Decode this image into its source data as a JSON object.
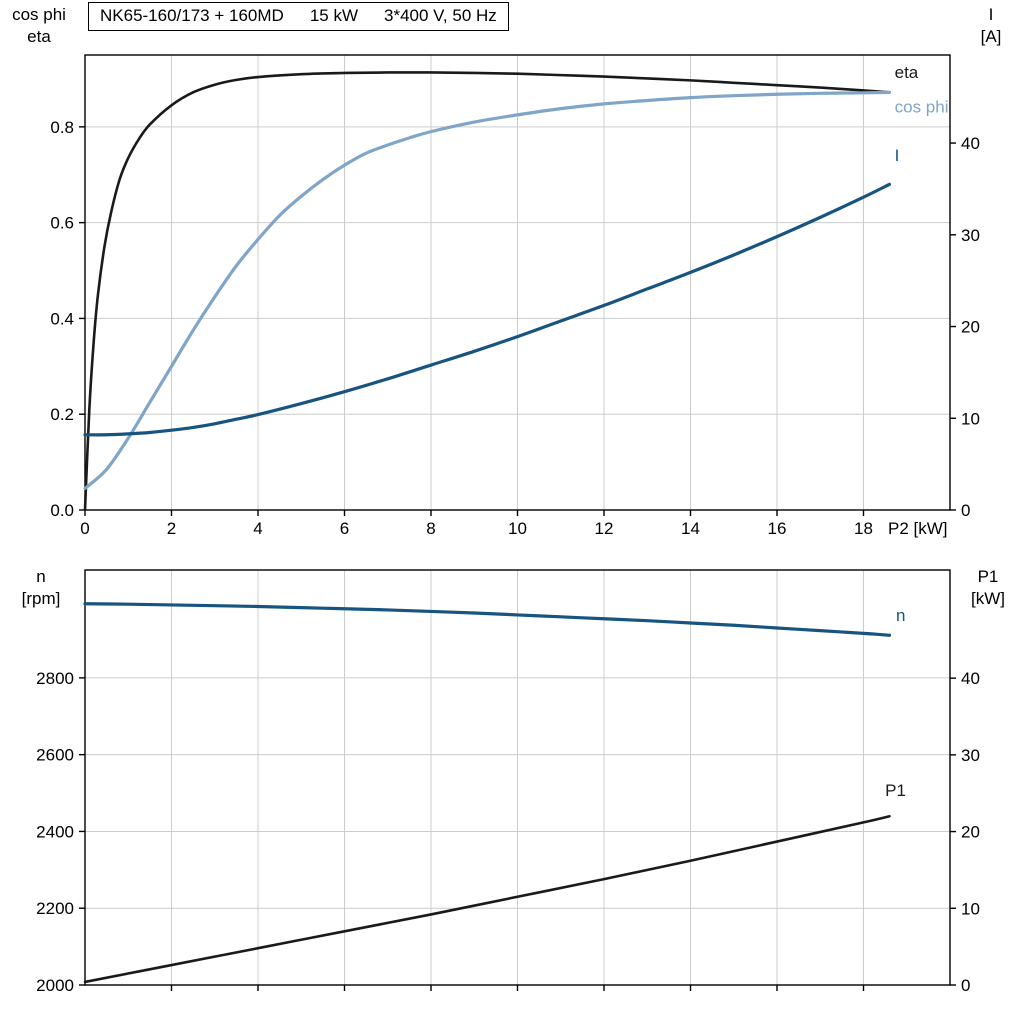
{
  "title": {
    "parts": [
      "NK65-160/173 + 160MD",
      "15 kW",
      "3*400 V, 50 Hz"
    ]
  },
  "axis_corner_labels": {
    "top_left": [
      "cos phi",
      "eta"
    ],
    "top_right": [
      "I",
      "[A]"
    ],
    "bottom_left": [
      "n",
      "[rpm]"
    ],
    "bottom_right": [
      "P1",
      "[kW]"
    ]
  },
  "colors": {
    "black": "#1a1a1a",
    "light_blue": "#7fa5c8",
    "dark_blue": "#17547f",
    "grid": "#cccccc",
    "frame": "#000000",
    "text": "#000000",
    "background": "#ffffff"
  },
  "chart_data": [
    {
      "id": "motor-efficiency-current",
      "type": "line",
      "grid": true,
      "x_axis": {
        "min": 0,
        "max": 20,
        "label": "P2 [kW]",
        "ticks": [
          {
            "v": 0,
            "t": "0"
          },
          {
            "v": 2,
            "t": "2"
          },
          {
            "v": 4,
            "t": "4"
          },
          {
            "v": 6,
            "t": "6"
          },
          {
            "v": 8,
            "t": "8"
          },
          {
            "v": 10,
            "t": "10"
          },
          {
            "v": 12,
            "t": "12"
          },
          {
            "v": 14,
            "t": "14"
          },
          {
            "v": 16,
            "t": "16"
          },
          {
            "v": 18,
            "t": "18"
          }
        ]
      },
      "left_axis": {
        "title": "cos phi / eta",
        "min": 0,
        "max": 0.95,
        "ticks": [
          {
            "v": 0,
            "t": "0.0"
          },
          {
            "v": 0.2,
            "t": "0.2"
          },
          {
            "v": 0.4,
            "t": "0.4"
          },
          {
            "v": 0.6,
            "t": "0.6"
          },
          {
            "v": 0.8,
            "t": "0.8"
          }
        ]
      },
      "right_axis": {
        "title": "I [A]",
        "min": 0,
        "max": 49.6,
        "ticks": [
          {
            "v": 0,
            "t": "0"
          },
          {
            "v": 10,
            "t": "10"
          },
          {
            "v": 20,
            "t": "20"
          },
          {
            "v": 30,
            "t": "30"
          },
          {
            "v": 40,
            "t": "40"
          }
        ]
      },
      "series": [
        {
          "name": "eta",
          "axis": "left",
          "color": "black",
          "width": 2.6,
          "label": "eta",
          "label_at": [
            18.72,
            0.915
          ],
          "points": [
            [
              0,
              0
            ],
            [
              0.1,
              0.21
            ],
            [
              0.2,
              0.35
            ],
            [
              0.3,
              0.45
            ],
            [
              0.45,
              0.55
            ],
            [
              0.6,
              0.62
            ],
            [
              0.8,
              0.69
            ],
            [
              1,
              0.735
            ],
            [
              1.25,
              0.775
            ],
            [
              1.5,
              0.805
            ],
            [
              2,
              0.845
            ],
            [
              2.5,
              0.872
            ],
            [
              3,
              0.888
            ],
            [
              3.5,
              0.898
            ],
            [
              4,
              0.904
            ],
            [
              5,
              0.91
            ],
            [
              6,
              0.9125
            ],
            [
              7,
              0.9135
            ],
            [
              8,
              0.9135
            ],
            [
              9,
              0.9125
            ],
            [
              10,
              0.911
            ],
            [
              11,
              0.908
            ],
            [
              12,
              0.905
            ],
            [
              13,
              0.901
            ],
            [
              14,
              0.897
            ],
            [
              15,
              0.892
            ],
            [
              16,
              0.887
            ],
            [
              17,
              0.882
            ],
            [
              18,
              0.876
            ],
            [
              18.6,
              0.872
            ]
          ]
        },
        {
          "name": "cos phi",
          "axis": "left",
          "color": "light_blue",
          "width": 3.2,
          "label": "cos phi",
          "label_at": [
            18.72,
            0.842
          ],
          "points": [
            [
              0,
              0.045
            ],
            [
              0.5,
              0.085
            ],
            [
              1,
              0.15
            ],
            [
              1.5,
              0.225
            ],
            [
              2,
              0.3
            ],
            [
              2.5,
              0.375
            ],
            [
              3,
              0.445
            ],
            [
              3.5,
              0.51
            ],
            [
              4,
              0.565
            ],
            [
              4.5,
              0.615
            ],
            [
              5,
              0.655
            ],
            [
              5.5,
              0.69
            ],
            [
              6,
              0.72
            ],
            [
              6.5,
              0.745
            ],
            [
              7,
              0.762
            ],
            [
              7.5,
              0.777
            ],
            [
              8,
              0.79
            ],
            [
              9,
              0.81
            ],
            [
              10,
              0.825
            ],
            [
              11,
              0.838
            ],
            [
              12,
              0.848
            ],
            [
              13,
              0.855
            ],
            [
              14,
              0.861
            ],
            [
              15,
              0.865
            ],
            [
              16,
              0.868
            ],
            [
              17,
              0.87
            ],
            [
              18,
              0.871
            ],
            [
              18.6,
              0.872
            ]
          ]
        },
        {
          "name": "I",
          "axis": "right",
          "color": "dark_blue",
          "width": 3.2,
          "label": "I",
          "label_at": [
            18.72,
            38.7
          ],
          "points": [
            [
              0,
              8.2
            ],
            [
              0.5,
              8.2
            ],
            [
              1,
              8.3
            ],
            [
              1.5,
              8.45
            ],
            [
              2,
              8.7
            ],
            [
              2.5,
              9.0
            ],
            [
              3,
              9.4
            ],
            [
              3.5,
              9.9
            ],
            [
              4,
              10.4
            ],
            [
              5,
              11.6
            ],
            [
              6,
              12.9
            ],
            [
              7,
              14.3
            ],
            [
              8,
              15.8
            ],
            [
              9,
              17.3
            ],
            [
              10,
              18.9
            ],
            [
              11,
              20.6
            ],
            [
              12,
              22.3
            ],
            [
              13,
              24.1
            ],
            [
              14,
              25.9
            ],
            [
              15,
              27.8
            ],
            [
              16,
              29.8
            ],
            [
              17,
              31.9
            ],
            [
              18,
              34.1
            ],
            [
              18.6,
              35.5
            ]
          ]
        }
      ]
    },
    {
      "id": "motor-speed-power",
      "type": "line",
      "grid": true,
      "x_axis": {
        "min": 0,
        "max": 20,
        "label": "",
        "ticks": [
          {
            "v": 2,
            "t": ""
          },
          {
            "v": 4,
            "t": ""
          },
          {
            "v": 6,
            "t": ""
          },
          {
            "v": 8,
            "t": ""
          },
          {
            "v": 10,
            "t": ""
          },
          {
            "v": 12,
            "t": ""
          },
          {
            "v": 14,
            "t": ""
          },
          {
            "v": 16,
            "t": ""
          },
          {
            "v": 18,
            "t": ""
          }
        ]
      },
      "left_axis": {
        "title": "n [rpm]",
        "min": 2000,
        "max": 3081,
        "ticks": [
          {
            "v": 2000,
            "t": "2000"
          },
          {
            "v": 2200,
            "t": "2200"
          },
          {
            "v": 2400,
            "t": "2400"
          },
          {
            "v": 2600,
            "t": "2600"
          },
          {
            "v": 2800,
            "t": "2800"
          }
        ]
      },
      "right_axis": {
        "title": "P1 [kW]",
        "min": 0,
        "max": 54.1,
        "ticks": [
          {
            "v": 0,
            "t": "0"
          },
          {
            "v": 10,
            "t": "10"
          },
          {
            "v": 20,
            "t": "20"
          },
          {
            "v": 30,
            "t": "30"
          },
          {
            "v": 40,
            "t": "40"
          }
        ]
      },
      "series": [
        {
          "name": "n",
          "axis": "left",
          "color": "dark_blue",
          "width": 3.2,
          "label": "n",
          "label_at": [
            18.75,
            2964
          ],
          "points": [
            [
              0,
              2993
            ],
            [
              1,
              2992
            ],
            [
              2,
              2990
            ],
            [
              3,
              2988
            ],
            [
              4,
              2986
            ],
            [
              5,
              2983
            ],
            [
              6,
              2980
            ],
            [
              7,
              2977
            ],
            [
              8,
              2973
            ],
            [
              9,
              2969
            ],
            [
              10,
              2964
            ],
            [
              11,
              2959
            ],
            [
              12,
              2954
            ],
            [
              13,
              2949
            ],
            [
              14,
              2943
            ],
            [
              15,
              2937
            ],
            [
              16,
              2930
            ],
            [
              17,
              2923
            ],
            [
              18,
              2916
            ],
            [
              18.6,
              2911
            ]
          ]
        },
        {
          "name": "P1",
          "axis": "right",
          "color": "black",
          "width": 2.6,
          "label": "P1",
          "label_at": [
            18.5,
            25.4
          ],
          "points": [
            [
              0,
              0.4
            ],
            [
              2,
              2.6
            ],
            [
              4,
              4.8
            ],
            [
              6,
              7.0
            ],
            [
              8,
              9.2
            ],
            [
              10,
              11.5
            ],
            [
              12,
              13.8
            ],
            [
              14,
              16.2
            ],
            [
              16,
              18.7
            ],
            [
              18,
              21.2
            ],
            [
              18.6,
              22.0
            ]
          ]
        }
      ]
    }
  ]
}
